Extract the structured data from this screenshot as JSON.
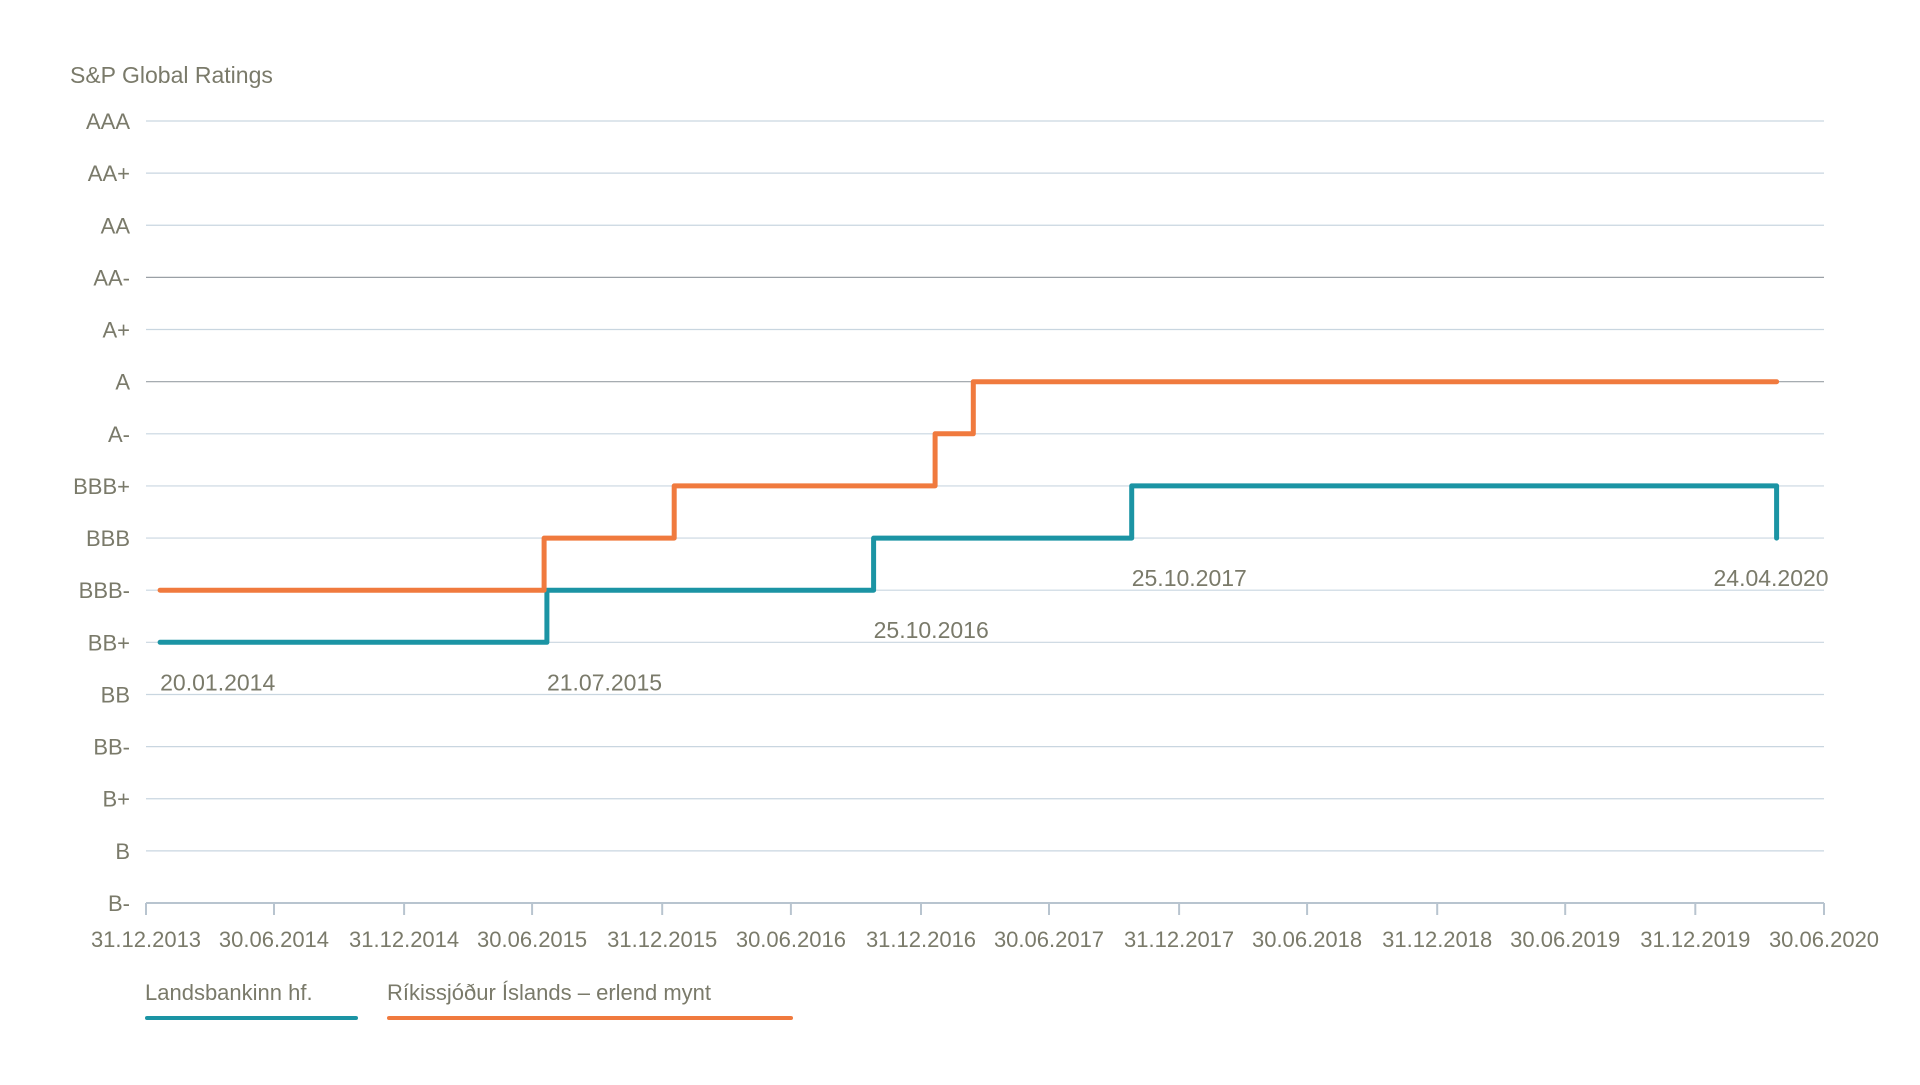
{
  "chart_data": {
    "type": "line",
    "title": "S&P Global Ratings",
    "y_categories": [
      "B-",
      "B",
      "B+",
      "BB-",
      "BB",
      "BB+",
      "BBB-",
      "BBB",
      "BBB+",
      "A-",
      "A",
      "A+",
      "AA-",
      "AA",
      "AA+",
      "AAA"
    ],
    "x_ticks": [
      "31.12.2013",
      "30.06.2014",
      "31.12.2014",
      "30.06.2015",
      "31.12.2015",
      "30.06.2016",
      "31.12.2016",
      "30.06.2017",
      "31.12.2017",
      "30.06.2018",
      "31.12.2018",
      "30.06.2019",
      "31.12.2019",
      "30.06.2020"
    ],
    "step": "post",
    "grid": true,
    "legend_position": "bottom-left",
    "series": [
      {
        "name": "Landsbankinn hf.",
        "color": "#1b94a4",
        "points": [
          {
            "date": "2014-01-20",
            "rating": "BB+"
          },
          {
            "date": "2015-07-21",
            "rating": "BBB-"
          },
          {
            "date": "2016-10-25",
            "rating": "BBB"
          },
          {
            "date": "2017-10-25",
            "rating": "BBB+"
          },
          {
            "date": "2020-04-24",
            "rating": "BBB"
          }
        ]
      },
      {
        "name": "Ríkissjóður Íslands – erlend mynt",
        "color": "#f07a3e",
        "points": [
          {
            "date": "2014-01-20",
            "rating": "BBB-"
          },
          {
            "date": "2015-07-17",
            "rating": "BBB"
          },
          {
            "date": "2016-01-17",
            "rating": "BBB+"
          },
          {
            "date": "2017-01-20",
            "rating": "A-"
          },
          {
            "date": "2017-03-15",
            "rating": "A"
          },
          {
            "date": "2020-04-24",
            "rating": "A"
          }
        ]
      }
    ],
    "annotations": [
      {
        "text": "20.01.2014",
        "date": "2014-01-20",
        "rating": "BB+"
      },
      {
        "text": "21.07.2015",
        "date": "2015-07-21",
        "rating": "BB+"
      },
      {
        "text": "25.10.2016",
        "date": "2016-10-25",
        "rating": "BBB-"
      },
      {
        "text": "25.10.2017",
        "date": "2017-10-25",
        "rating": "BBB"
      },
      {
        "text": "24.04.2020",
        "date": "2020-04-24",
        "rating": "BBB"
      }
    ]
  },
  "colors": {
    "text": "#7a7a6a",
    "grid": "#c9d6e0",
    "grid_dark": "#9aa0a6",
    "axis": "#b8c4cf"
  }
}
